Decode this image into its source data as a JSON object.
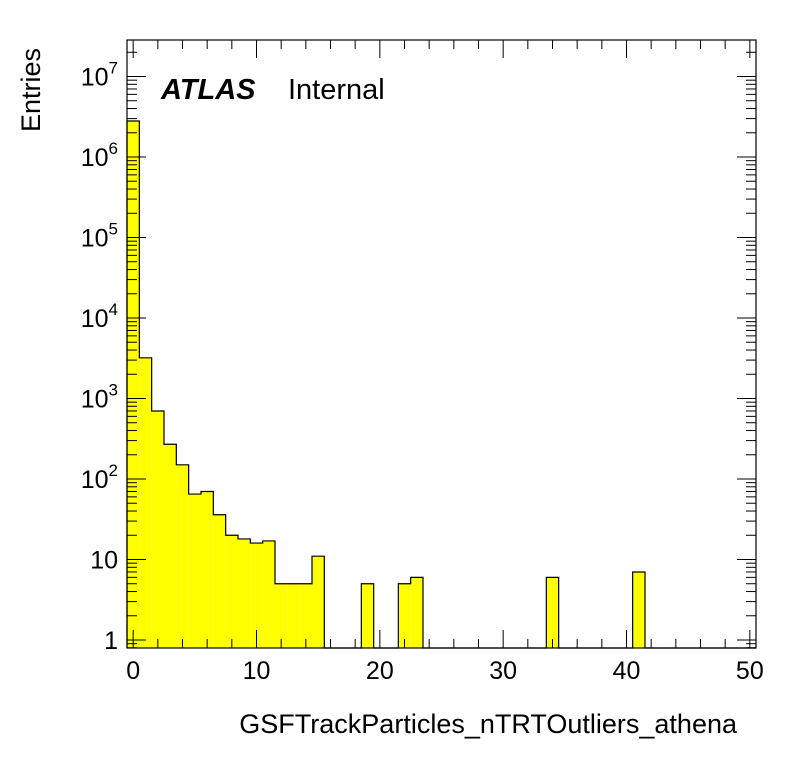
{
  "chart_data": {
    "type": "bar",
    "style": "histogram",
    "x_label": "GSFTrackParticles_nTRTOutliers_athena",
    "y_label": "Entries",
    "y_scale": "log",
    "xlim": [
      -0.5,
      50.5
    ],
    "ylim": [
      0.8,
      25000000
    ],
    "bin_width": 1,
    "bin_centers": [
      0,
      1,
      2,
      3,
      4,
      5,
      6,
      7,
      8,
      9,
      10,
      11,
      12,
      13,
      14,
      15,
      16,
      17,
      18,
      19,
      20,
      21,
      22,
      23,
      24,
      25,
      26,
      27,
      28,
      29,
      30,
      31,
      32,
      33,
      34,
      35,
      36,
      37,
      38,
      39,
      40,
      41,
      42,
      43,
      44,
      45,
      46,
      47,
      48,
      49,
      50
    ],
    "values": [
      2800000,
      3200,
      700,
      270,
      150,
      65,
      70,
      36,
      20,
      18,
      16,
      17,
      5,
      5,
      5,
      11,
      0,
      0,
      0,
      5,
      0,
      0,
      5,
      6,
      0,
      0,
      0,
      0,
      0,
      0,
      0,
      0,
      0,
      0,
      6,
      0,
      0,
      0,
      0,
      0,
      0,
      7,
      0,
      0,
      0,
      0,
      0,
      0,
      0,
      0,
      0
    ],
    "fill_color": "#ffff00",
    "line_color": "#000000",
    "x_tick_labels": [
      "0",
      "10",
      "20",
      "30",
      "40",
      "50"
    ],
    "y_tick_labels": [
      {
        "base": "1",
        "exp": ""
      },
      {
        "base": "10",
        "exp": ""
      },
      {
        "base": "10",
        "exp": "2"
      },
      {
        "base": "10",
        "exp": "3"
      },
      {
        "base": "10",
        "exp": "4"
      },
      {
        "base": "10",
        "exp": "5"
      },
      {
        "base": "10",
        "exp": "6"
      },
      {
        "base": "10",
        "exp": "7"
      }
    ],
    "annotation": {
      "bold": "ATLAS",
      "text": "Internal"
    },
    "grid": false,
    "legend": "none"
  }
}
